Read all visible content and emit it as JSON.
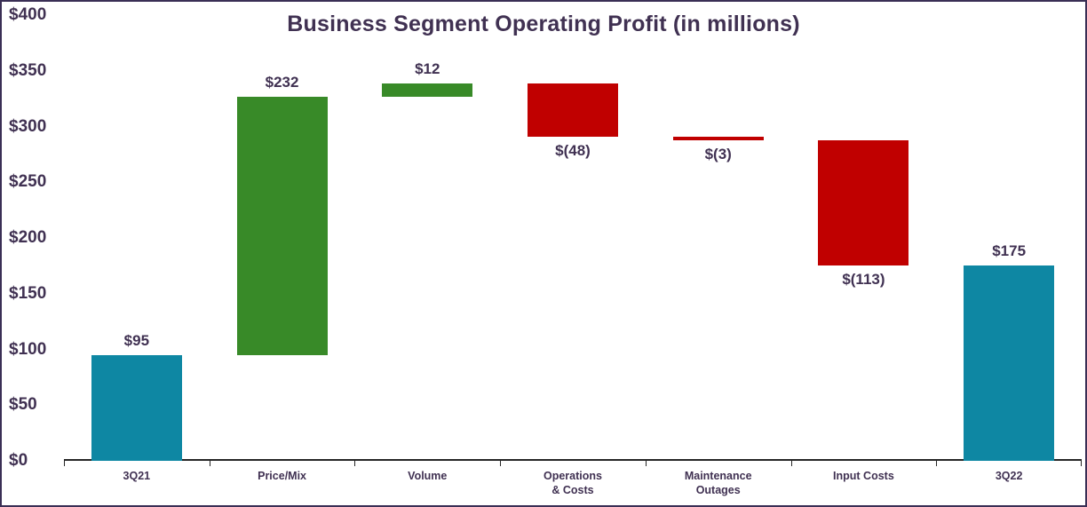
{
  "title": "Business Segment Operating Profit (in millions)",
  "colors": {
    "total": "#0e87a3",
    "increase": "#388a28",
    "decrease": "#c00000",
    "text": "#403152",
    "axis": "#262626",
    "border": "#3a2f55"
  },
  "chart_data": {
    "type": "bar",
    "subtype": "waterfall",
    "title": "Business Segment Operating Profit (in millions)",
    "categories": [
      "3Q21",
      "Price/Mix",
      "Volume",
      "Operations & Costs",
      "Maintenance Outages",
      "Input Costs",
      "3Q22"
    ],
    "series": [
      {
        "name": "Operating profit bridge",
        "values": [
          95,
          232,
          12,
          -48,
          -3,
          -113,
          175
        ]
      }
    ],
    "bars": [
      {
        "label_lines": [
          "3Q21"
        ],
        "value": 95,
        "start": 0,
        "end": 95,
        "kind": "total",
        "data_label": "$95",
        "label_position": "above"
      },
      {
        "label_lines": [
          "Price/Mix"
        ],
        "value": 232,
        "start": 95,
        "end": 327,
        "kind": "increase",
        "data_label": "$232",
        "label_position": "above"
      },
      {
        "label_lines": [
          "Volume"
        ],
        "value": 12,
        "start": 327,
        "end": 339,
        "kind": "increase",
        "data_label": "$12",
        "label_position": "above"
      },
      {
        "label_lines": [
          "Operations",
          "& Costs"
        ],
        "value": -48,
        "start": 339,
        "end": 291,
        "kind": "decrease",
        "data_label": "$(48)",
        "label_position": "below"
      },
      {
        "label_lines": [
          "Maintenance",
          "Outages"
        ],
        "value": -3,
        "start": 291,
        "end": 288,
        "kind": "decrease",
        "data_label": "$(3)",
        "label_position": "below"
      },
      {
        "label_lines": [
          "Input Costs"
        ],
        "value": -113,
        "start": 288,
        "end": 175,
        "kind": "decrease",
        "data_label": "$(113)",
        "label_position": "below"
      },
      {
        "label_lines": [
          "3Q22"
        ],
        "value": 175,
        "start": 0,
        "end": 175,
        "kind": "total",
        "data_label": "$175",
        "label_position": "above"
      }
    ],
    "ylim": [
      0,
      400
    ],
    "ytick_interval": 50,
    "ytick_labels": [
      "$0",
      "$50",
      "$100",
      "$150",
      "$200",
      "$250",
      "$300",
      "$350",
      "$400"
    ],
    "grid": false,
    "legend": false
  }
}
